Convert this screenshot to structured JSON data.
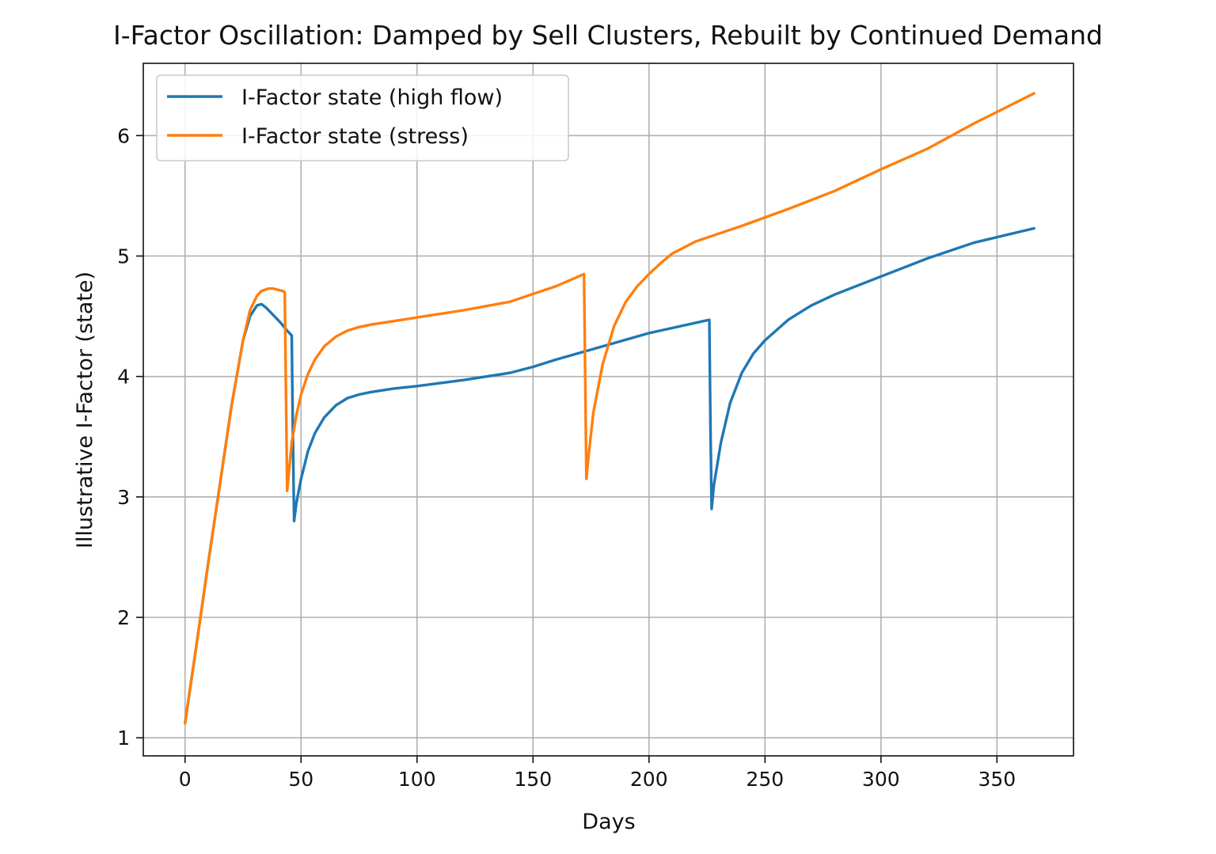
{
  "chart_data": {
    "type": "line",
    "title": "I-Factor Oscillation: Damped by Sell Clusters, Rebuilt by Continued Demand",
    "xlabel": "Days",
    "ylabel": "Illustrative I-Factor (state)",
    "xlim": [
      -18,
      383
    ],
    "ylim": [
      0.85,
      6.6
    ],
    "xticks": [
      0,
      50,
      100,
      150,
      200,
      250,
      300,
      350
    ],
    "yticks": [
      1,
      2,
      3,
      4,
      5,
      6
    ],
    "grid": true,
    "legend_position": "upper-left",
    "series": [
      {
        "name": "I-Factor state (high flow)",
        "color": "#1f77b4",
        "x": [
          0,
          5,
          10,
          15,
          20,
          25,
          28,
          31,
          33,
          35,
          38,
          41,
          44,
          46,
          46.5,
          47,
          48,
          50,
          53,
          56,
          60,
          65,
          70,
          75,
          80,
          90,
          100,
          120,
          140,
          150,
          160,
          180,
          200,
          226,
          226.5,
          227,
          228,
          231,
          235,
          240,
          245,
          250,
          260,
          270,
          280,
          300,
          320,
          340,
          366
        ],
        "y": [
          1.12,
          1.78,
          2.45,
          3.1,
          3.75,
          4.3,
          4.5,
          4.59,
          4.6,
          4.57,
          4.51,
          4.45,
          4.38,
          4.34,
          3.5,
          2.8,
          2.95,
          3.15,
          3.38,
          3.53,
          3.66,
          3.76,
          3.82,
          3.85,
          3.87,
          3.9,
          3.92,
          3.97,
          4.03,
          4.08,
          4.14,
          4.25,
          4.36,
          4.47,
          3.6,
          2.9,
          3.1,
          3.45,
          3.78,
          4.03,
          4.19,
          4.3,
          4.47,
          4.59,
          4.68,
          4.83,
          4.98,
          5.11,
          5.23
        ]
      },
      {
        "name": "I-Factor state (stress)",
        "color": "#ff7f0e",
        "x": [
          0,
          5,
          10,
          15,
          20,
          25,
          28,
          31,
          33,
          36,
          38,
          40,
          42,
          43,
          44,
          45,
          46,
          48,
          50,
          53,
          56,
          60,
          65,
          70,
          75,
          80,
          90,
          100,
          120,
          140,
          160,
          172,
          172.5,
          173,
          174,
          176,
          180,
          185,
          190,
          195,
          200,
          205,
          210,
          220,
          240,
          260,
          280,
          300,
          320,
          340,
          366
        ],
        "y": [
          1.12,
          1.78,
          2.45,
          3.1,
          3.75,
          4.3,
          4.55,
          4.67,
          4.71,
          4.73,
          4.73,
          4.72,
          4.71,
          4.7,
          3.05,
          3.25,
          3.45,
          3.68,
          3.85,
          4.02,
          4.14,
          4.25,
          4.33,
          4.38,
          4.41,
          4.43,
          4.46,
          4.49,
          4.55,
          4.62,
          4.75,
          4.85,
          4.0,
          3.15,
          3.35,
          3.7,
          4.1,
          4.42,
          4.62,
          4.75,
          4.85,
          4.94,
          5.02,
          5.12,
          5.25,
          5.39,
          5.54,
          5.72,
          5.89,
          6.1,
          6.35
        ]
      }
    ]
  }
}
